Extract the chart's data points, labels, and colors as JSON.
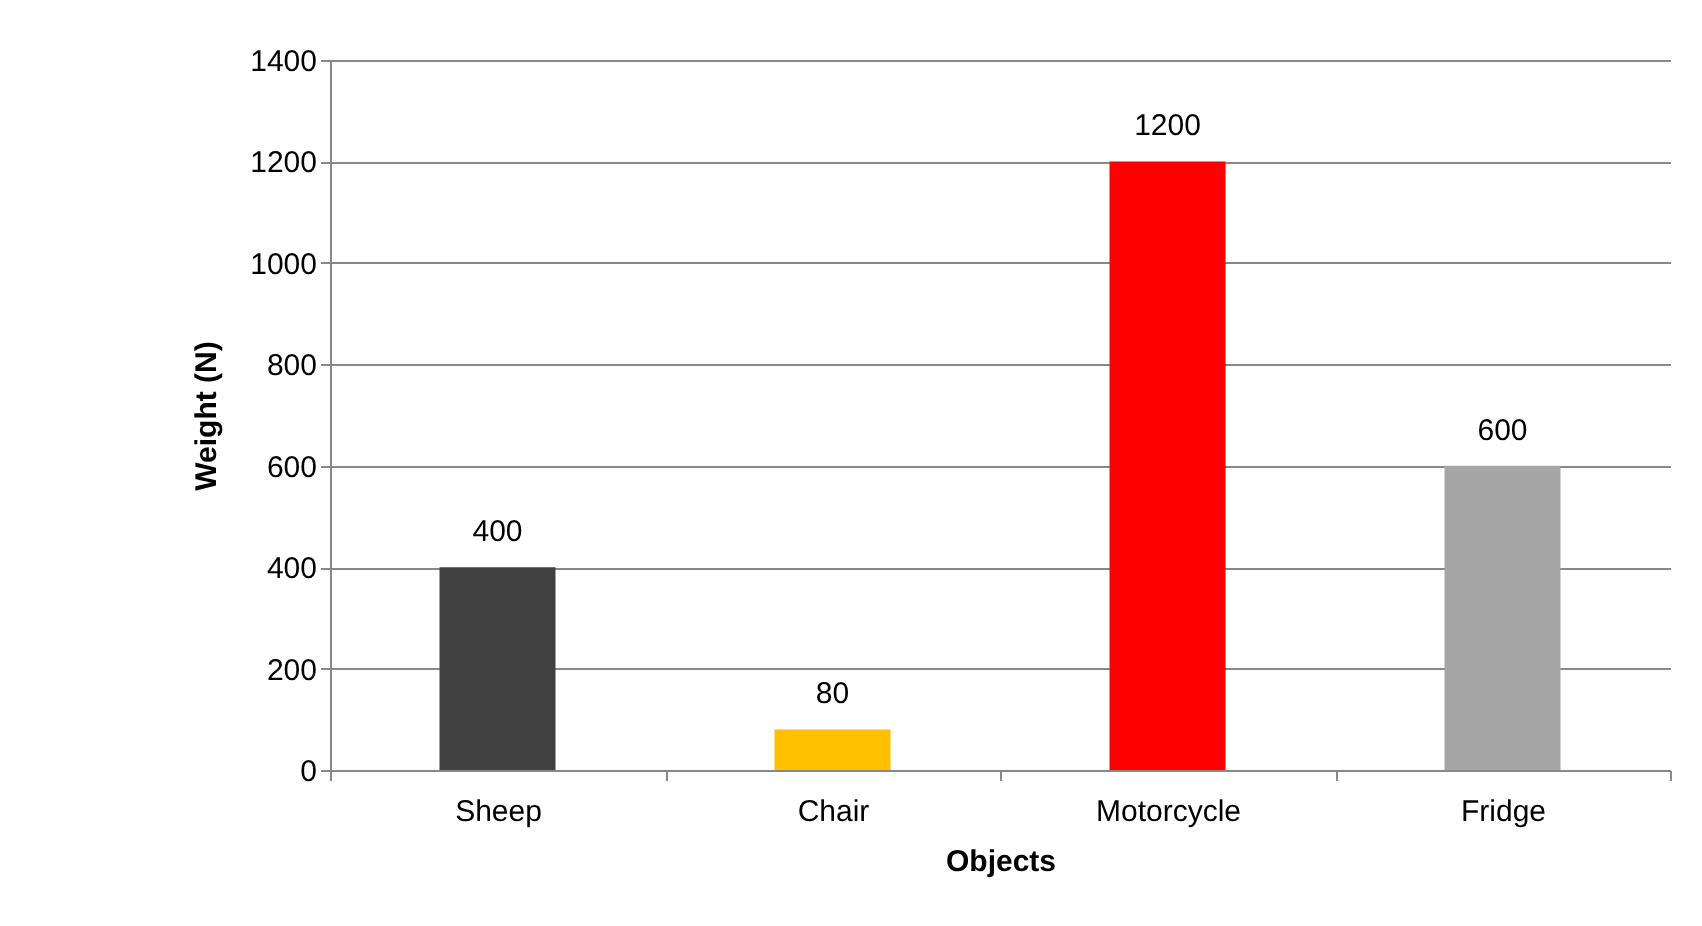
{
  "chart_data": {
    "type": "bar",
    "xlabel": "Objects",
    "ylabel": "Weight (N)",
    "categories": [
      "Sheep",
      "Chair",
      "Motorcycle",
      "Fridge"
    ],
    "values": [
      400,
      80,
      1200,
      600
    ],
    "colors": [
      "#404040",
      "#ffc000",
      "#ff0000",
      "#a6a6a6"
    ],
    "ylim": [
      0,
      1400
    ],
    "yticks": [
      0,
      200,
      400,
      600,
      800,
      1000,
      1200,
      1400
    ],
    "grid": "y",
    "data_labels": true
  }
}
